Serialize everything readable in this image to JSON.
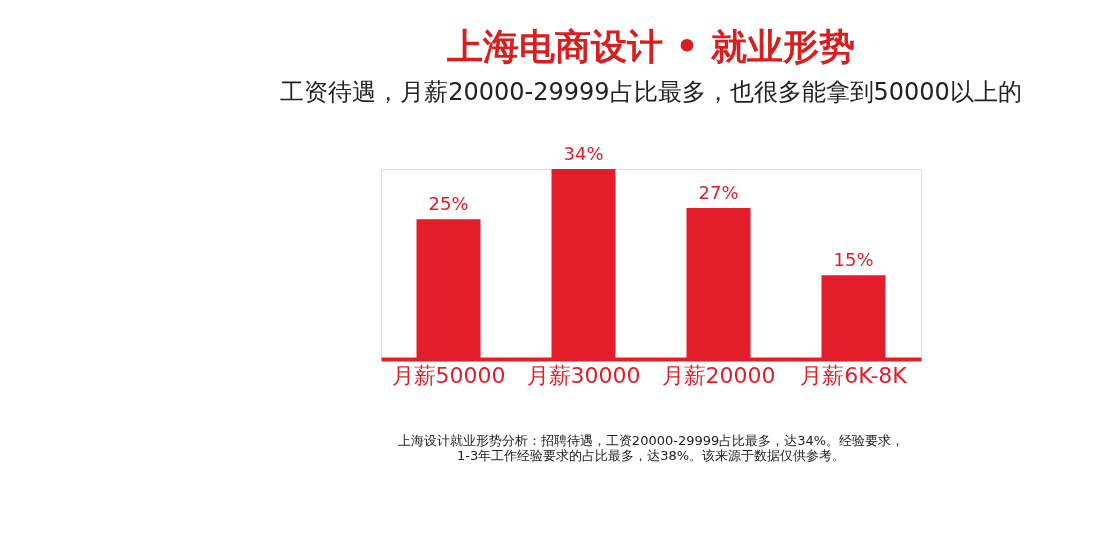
{
  "chart_data": {
    "type": "bar",
    "title": "上海电商设计 • 就业形势",
    "subtitle": "工资待遇，月薪20000-29999占比最多，也很多能拿到50000以上的",
    "categories": [
      "月薪50000",
      "月薪30000",
      "月薪20000",
      "月薪6K-8K"
    ],
    "values": [
      25,
      34,
      27,
      15
    ],
    "color": "#e31e2a",
    "value_labels": [
      "25%",
      "34%",
      "27%",
      "15%"
    ],
    "annotations": [
      "上海设计就业形势分析：招聘待遇，工资20000-29999占比最多，达34%。经验要求，",
      "1-3年工作经验要求的占比最多，达38%。该来源于数据仅供参考。"
    ]
  }
}
